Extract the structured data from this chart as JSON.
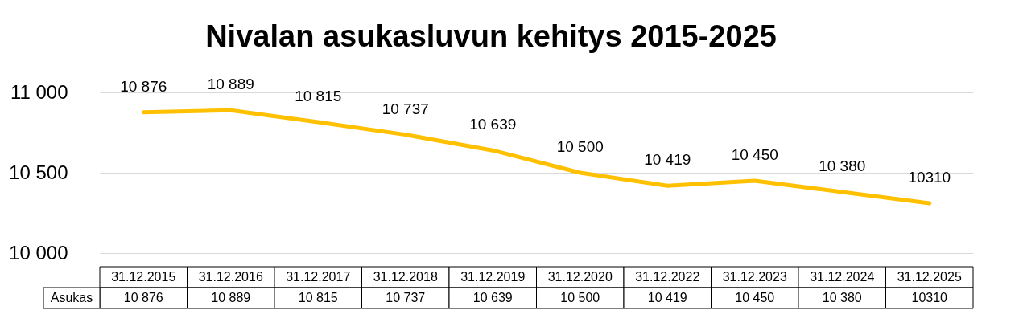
{
  "chart_data": {
    "type": "line",
    "title": "Nivalan asukasluvun kehitys 2015-2025",
    "categories": [
      "31.12.2015",
      "31.12.2016",
      "31.12.2017",
      "31.12.2018",
      "31.12.2019",
      "31.12.2020",
      "31.12.2022",
      "31.12.2023",
      "31.12.2024",
      "31.12.2025"
    ],
    "series": [
      {
        "name": "Asukas",
        "color": "#ffc000",
        "values": [
          10876,
          10889,
          10815,
          10737,
          10639,
          10500,
          10419,
          10450,
          10380,
          10310
        ],
        "value_labels": [
          "10 876",
          "10 889",
          "10 815",
          "10 737",
          "10 639",
          "10 500",
          "10 419",
          "10 450",
          "10 380",
          "10310"
        ]
      }
    ],
    "ylim": [
      10000,
      11000
    ],
    "yticks": [
      {
        "value": 10000,
        "label": "10 000"
      },
      {
        "value": 10500,
        "label": "10 500"
      },
      {
        "value": 11000,
        "label": "11 000"
      }
    ],
    "grid": "y",
    "marker": "none",
    "line_style": "solid"
  }
}
